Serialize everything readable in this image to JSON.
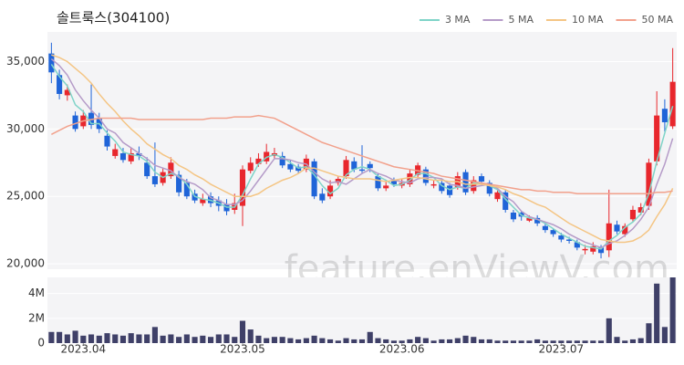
{
  "chart_data": [
    {
      "type": "candlestick",
      "title": "솔트룩스(304100)",
      "watermark": "feature.enViewV.com",
      "up_color": "#e8272d",
      "down_color": "#1f64d8",
      "background": "#f4f4f6",
      "grid": true,
      "ylim": [
        19600,
        37200
      ],
      "yticks": [
        {
          "value": 20000,
          "label": "20,000"
        },
        {
          "value": 25000,
          "label": "25,000"
        },
        {
          "value": 30000,
          "label": "30,000"
        },
        {
          "value": 35000,
          "label": "35,000"
        }
      ],
      "open": [
        35600,
        34000,
        32500,
        31000,
        30200,
        31200,
        30800,
        29500,
        28000,
        28200,
        27600,
        28200,
        27500,
        26500,
        26000,
        26500,
        26600,
        26000,
        25200,
        24500,
        25000,
        24700,
        24400,
        24000,
        24300,
        26900,
        27400,
        27600,
        28000,
        28000,
        27400,
        27200,
        27000,
        27600,
        25200,
        25000,
        26000,
        26500,
        27600,
        27000,
        27400,
        26500,
        25600,
        26200,
        25800,
        25900,
        26600,
        27000,
        25800,
        26000,
        25800,
        25700,
        26800,
        25400,
        26500,
        26000,
        24800,
        25300,
        23800,
        23800,
        23200,
        23400,
        22800,
        22500,
        22100,
        21800,
        21600,
        21000,
        20900,
        21200,
        21000,
        22900,
        22200,
        23300,
        23800,
        24300,
        27600,
        31500,
        30200
      ],
      "high": [
        36400,
        34400,
        33300,
        31300,
        31400,
        33300,
        31200,
        29900,
        28900,
        28600,
        28600,
        28700,
        27900,
        29000,
        27100,
        27900,
        26900,
        26300,
        25500,
        25200,
        25300,
        25000,
        24800,
        25200,
        27300,
        27900,
        28200,
        28900,
        28600,
        28300,
        27700,
        27400,
        28100,
        27800,
        25600,
        26200,
        26500,
        28000,
        27900,
        28800,
        27600,
        26700,
        26100,
        26400,
        26300,
        27000,
        27500,
        27200,
        26200,
        26300,
        26000,
        26800,
        27000,
        26500,
        26700,
        26200,
        25500,
        25500,
        24000,
        23900,
        23600,
        23600,
        23000,
        22600,
        22300,
        22000,
        21800,
        21400,
        21600,
        21400,
        25500,
        23200,
        23000,
        24300,
        24500,
        27800,
        32800,
        32200,
        36000
      ],
      "low": [
        33400,
        32200,
        32100,
        29800,
        30000,
        30000,
        29700,
        28400,
        27800,
        27500,
        27400,
        27700,
        26300,
        25700,
        25800,
        26300,
        25000,
        24800,
        24500,
        24300,
        24200,
        23900,
        23600,
        23700,
        22800,
        26700,
        27200,
        27400,
        27800,
        27100,
        26800,
        26700,
        26800,
        24800,
        24500,
        24800,
        25800,
        26300,
        26800,
        26700,
        26800,
        25400,
        25400,
        25700,
        25600,
        25700,
        26400,
        25800,
        25600,
        25200,
        24900,
        25500,
        25100,
        25200,
        25900,
        25000,
        24600,
        23800,
        23100,
        23200,
        23100,
        22800,
        22300,
        22000,
        21600,
        21500,
        21000,
        20700,
        20700,
        20400,
        20500,
        22200,
        22000,
        23100,
        23600,
        24000,
        27300,
        29800,
        30000
      ],
      "close": [
        34200,
        32600,
        32900,
        30000,
        31000,
        30300,
        30000,
        28700,
        28500,
        27700,
        28200,
        28000,
        26500,
        25900,
        26800,
        27500,
        25300,
        25000,
        24700,
        24800,
        24500,
        24300,
        23900,
        24500,
        27000,
        27500,
        27800,
        28300,
        28200,
        27300,
        27000,
        26900,
        27800,
        25000,
        24700,
        25800,
        26300,
        27700,
        27000,
        26900,
        27100,
        25600,
        25800,
        25900,
        26000,
        26700,
        27300,
        26000,
        25900,
        25400,
        25100,
        26500,
        25300,
        26200,
        26100,
        25200,
        25300,
        24000,
        23300,
        23500,
        23400,
        23000,
        22500,
        22200,
        21800,
        21700,
        21200,
        21100,
        21300,
        20800,
        23000,
        22400,
        22800,
        24000,
        24200,
        27500,
        31000,
        30500,
        33500
      ],
      "series": [
        {
          "name": "3 MA",
          "color": "#7fd4c8",
          "values": [
            34800,
            33900,
            33200,
            31800,
            31300,
            30400,
            30400,
            29700,
            29100,
            28300,
            28100,
            28000,
            27600,
            26800,
            26400,
            26700,
            26500,
            25900,
            25000,
            24800,
            24700,
            24500,
            24200,
            24200,
            25100,
            26300,
            27400,
            27900,
            28100,
            27900,
            27500,
            27100,
            27200,
            26600,
            25800,
            25200,
            25600,
            26600,
            27000,
            27200,
            27000,
            26500,
            26200,
            25800,
            25900,
            26200,
            26700,
            26700,
            26400,
            25800,
            25500,
            25700,
            25600,
            26000,
            25900,
            25800,
            25500,
            24800,
            24200,
            23600,
            23400,
            23300,
            23000,
            22600,
            22200,
            21900,
            21600,
            21300,
            21200,
            21100,
            21700,
            22100,
            22700,
            23100,
            23700,
            25200,
            27600,
            29700,
            31700
          ]
        },
        {
          "name": "5 MA",
          "color": "#b59bc8",
          "values": [
            35200,
            34700,
            34000,
            32900,
            32100,
            31400,
            30800,
            30000,
            29700,
            29000,
            28600,
            28200,
            27800,
            27300,
            27100,
            26900,
            26400,
            26100,
            25900,
            25500,
            24900,
            24700,
            24400,
            24400,
            24700,
            25400,
            26200,
            27000,
            27800,
            27800,
            27700,
            27500,
            27400,
            26800,
            26300,
            26000,
            26100,
            25900,
            26300,
            26700,
            27000,
            26700,
            26500,
            26200,
            26100,
            26000,
            26300,
            26400,
            26400,
            26300,
            25900,
            25800,
            25600,
            25700,
            25800,
            25900,
            25600,
            25000,
            24600,
            23900,
            23500,
            23300,
            23100,
            22900,
            22600,
            22200,
            21900,
            21600,
            21400,
            21200,
            21500,
            21700,
            22100,
            22600,
            23300,
            24200,
            25900,
            27400,
            29300
          ]
        },
        {
          "name": "10 MA",
          "color": "#f4c584",
          "values": [
            35500,
            35300,
            35000,
            34500,
            34000,
            33400,
            32600,
            31900,
            31300,
            30600,
            30000,
            29500,
            28900,
            28500,
            28100,
            27800,
            27300,
            27000,
            26600,
            26300,
            25900,
            25600,
            25300,
            25000,
            25000,
            25000,
            25200,
            25600,
            25900,
            26200,
            26400,
            26700,
            27100,
            27100,
            26900,
            26700,
            26500,
            26400,
            26300,
            26300,
            26300,
            26200,
            26100,
            26200,
            26300,
            26400,
            26400,
            26300,
            26200,
            26200,
            26100,
            26100,
            25900,
            25900,
            25900,
            25800,
            25700,
            25500,
            25200,
            25000,
            24700,
            24400,
            24200,
            23800,
            23400,
            23000,
            22700,
            22400,
            22100,
            21800,
            21700,
            21600,
            21600,
            21700,
            22000,
            22500,
            23500,
            24400,
            25600
          ]
        },
        {
          "name": "50 MA",
          "color": "#f2a18c",
          "values": [
            29600,
            29900,
            30200,
            30400,
            30600,
            30700,
            30800,
            30800,
            30800,
            30800,
            30800,
            30700,
            30700,
            30700,
            30700,
            30700,
            30700,
            30700,
            30700,
            30700,
            30800,
            30800,
            30800,
            30900,
            30900,
            30900,
            31000,
            30900,
            30800,
            30500,
            30200,
            29900,
            29600,
            29300,
            29000,
            28800,
            28600,
            28400,
            28200,
            28000,
            27800,
            27600,
            27400,
            27200,
            27100,
            27000,
            26900,
            26800,
            26700,
            26500,
            26400,
            26300,
            26200,
            26100,
            26000,
            25900,
            25800,
            25700,
            25600,
            25500,
            25500,
            25400,
            25400,
            25300,
            25300,
            25300,
            25200,
            25200,
            25200,
            25200,
            25200,
            25200,
            25200,
            25200,
            25200,
            25200,
            25300,
            25300,
            25400
          ]
        }
      ]
    },
    {
      "type": "bar",
      "color": "#3f4068",
      "ylim": [
        0,
        5300000
      ],
      "yticks": [
        0,
        {
          "value": 2000000,
          "label": "2M"
        },
        {
          "value": 4000000,
          "label": "4M"
        }
      ],
      "categories": [
        null,
        null,
        null,
        null,
        "2023.04",
        null,
        null,
        null,
        null,
        null,
        null,
        null,
        null,
        null,
        null,
        null,
        null,
        null,
        null,
        null,
        null,
        null,
        null,
        null,
        "2023.05",
        null,
        null,
        null,
        null,
        null,
        null,
        null,
        null,
        null,
        null,
        null,
        null,
        null,
        null,
        null,
        null,
        null,
        null,
        null,
        "2023.06",
        null,
        null,
        null,
        null,
        null,
        null,
        null,
        null,
        null,
        null,
        null,
        null,
        null,
        null,
        null,
        null,
        null,
        null,
        null,
        "2023.07",
        null,
        null,
        null,
        null,
        null,
        null,
        null,
        null,
        null,
        null,
        null,
        null,
        null,
        null
      ],
      "values": [
        900000,
        900000,
        700000,
        1000000,
        600000,
        700000,
        600000,
        800000,
        700000,
        600000,
        800000,
        700000,
        700000,
        1300000,
        600000,
        700000,
        500000,
        700000,
        500000,
        600000,
        500000,
        700000,
        700000,
        500000,
        1800000,
        1100000,
        600000,
        400000,
        500000,
        500000,
        400000,
        300000,
        400000,
        600000,
        400000,
        300000,
        200000,
        400000,
        300000,
        300000,
        900000,
        400000,
        300000,
        200000,
        200000,
        300000,
        500000,
        400000,
        200000,
        300000,
        300000,
        400000,
        600000,
        500000,
        300000,
        300000,
        200000,
        200000,
        200000,
        200000,
        200000,
        300000,
        200000,
        200000,
        200000,
        200000,
        200000,
        200000,
        200000,
        200000,
        2000000,
        500000,
        200000,
        300000,
        400000,
        1600000,
        4800000,
        1300000,
        5300000
      ]
    }
  ]
}
